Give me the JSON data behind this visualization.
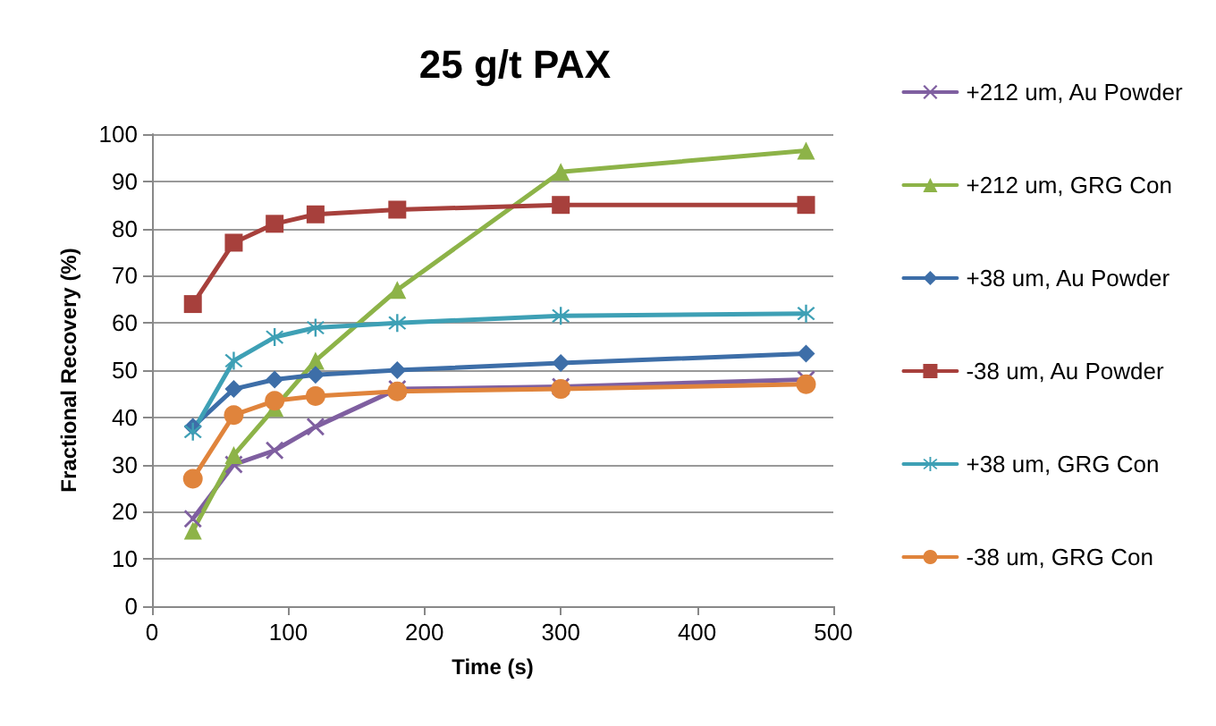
{
  "chart_data": {
    "type": "line",
    "title": "25 g/t PAX",
    "xlabel": "Time (s)",
    "ylabel": "Fractional Recovery (%)",
    "x": [
      30,
      60,
      90,
      120,
      180,
      300,
      480
    ],
    "xlim": [
      0,
      500
    ],
    "xticks": [
      0,
      100,
      200,
      300,
      400,
      500
    ],
    "ylim": [
      0,
      100
    ],
    "yticks": [
      0,
      10,
      20,
      30,
      40,
      50,
      60,
      70,
      80,
      90,
      100
    ],
    "grid": "y",
    "legend": "right",
    "line_style": "solid",
    "series": [
      {
        "name": "+212 um, Au Powder",
        "color": "#7f5fa0",
        "marker": "cross",
        "values": [
          18.5,
          30,
          33,
          38,
          46,
          46.5,
          48
        ]
      },
      {
        "name": "+212 um, GRG Con",
        "color": "#8db348",
        "marker": "triangle",
        "values": [
          16,
          32,
          42,
          52,
          67,
          92,
          96.5
        ]
      },
      {
        "name": "+38 um, Au Powder",
        "color": "#3d6ea8",
        "marker": "diamond",
        "values": [
          38,
          46,
          48,
          49,
          50,
          51.5,
          53.5
        ]
      },
      {
        "name": "-38 um, Au Powder",
        "color": "#a7403c",
        "marker": "square",
        "values": [
          64,
          77,
          81,
          83,
          84,
          85,
          85
        ]
      },
      {
        "name": "+38 um, GRG Con",
        "color": "#3ea0b5",
        "marker": "star",
        "values": [
          37,
          52,
          57,
          59,
          60,
          61.5,
          62
        ]
      },
      {
        "name": "-38 um, GRG Con",
        "color": "#e0843c",
        "marker": "circle",
        "values": [
          27,
          40.5,
          43.5,
          44.5,
          45.5,
          46,
          47
        ]
      }
    ]
  }
}
